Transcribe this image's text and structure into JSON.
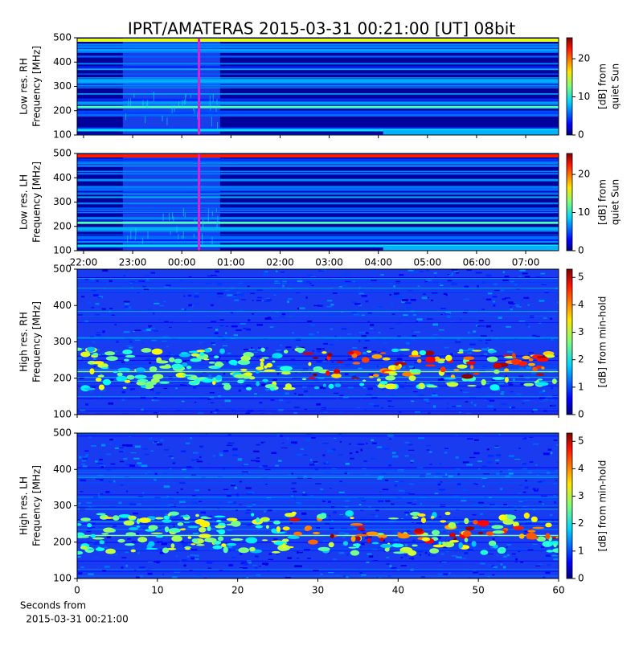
{
  "title": "IPRT/AMATERAS 2015-03-31 00:21:00 [UT]   08bit",
  "chart_data": [
    {
      "type": "heatmap",
      "ylabel": [
        "Low res. RH",
        "Frequency [MHz]"
      ],
      "xlim": [
        -2.13,
        7.67
      ],
      "xticks": [
        {
          "value": -2,
          "label": "22:00"
        },
        {
          "value": -1,
          "label": "23:00"
        },
        {
          "value": 0,
          "label": "00:00"
        },
        {
          "value": 1,
          "label": "01:00"
        },
        {
          "value": 2,
          "label": "02:00"
        },
        {
          "value": 3,
          "label": "03:00"
        },
        {
          "value": 4,
          "label": "04:00"
        },
        {
          "value": 5,
          "label": "05:00"
        },
        {
          "value": 6,
          "label": "06:00"
        },
        {
          "value": 7,
          "label": "07:00"
        }
      ],
      "xticklabels_visible": false,
      "ylim": [
        100,
        500
      ],
      "yticks": [
        100,
        200,
        300,
        400,
        500
      ],
      "marker_x": 0.35,
      "marker_color": "#e020d0",
      "colorbar_label": [
        "[dB] from",
        "quiet Sun"
      ],
      "clim": [
        0,
        25.5
      ],
      "cticks": [
        0,
        10,
        20
      ]
    },
    {
      "type": "heatmap",
      "ylabel": [
        "Low res. LH",
        "Frequency [MHz]"
      ],
      "xlim": [
        -2.13,
        7.67
      ],
      "xticks": [
        {
          "value": -2,
          "label": "22:00"
        },
        {
          "value": -1,
          "label": "23:00"
        },
        {
          "value": 0,
          "label": "00:00"
        },
        {
          "value": 1,
          "label": "01:00"
        },
        {
          "value": 2,
          "label": "02:00"
        },
        {
          "value": 3,
          "label": "03:00"
        },
        {
          "value": 4,
          "label": "04:00"
        },
        {
          "value": 5,
          "label": "05:00"
        },
        {
          "value": 6,
          "label": "06:00"
        },
        {
          "value": 7,
          "label": "07:00"
        }
      ],
      "xticklabels_visible": true,
      "ylim": [
        100,
        500
      ],
      "yticks": [
        100,
        200,
        300,
        400,
        500
      ],
      "marker_x": 0.35,
      "marker_color": "#e020d0",
      "colorbar_label": [
        "[dB] from",
        "quiet Sun"
      ],
      "clim": [
        0,
        25.5
      ],
      "cticks": [
        0,
        10,
        20
      ]
    },
    {
      "type": "heatmap",
      "ylabel": [
        "High res. RH",
        "Frequency [MHz]"
      ],
      "xlim": [
        0,
        60
      ],
      "xticks": [
        0,
        10,
        20,
        30,
        40,
        50,
        60
      ],
      "xticklabels_visible": false,
      "ylim": [
        100,
        500
      ],
      "yticks": [
        100,
        200,
        300,
        400,
        500
      ],
      "colorbar_label": [
        "[dB] from min-hold"
      ],
      "clim": [
        0,
        5.3
      ],
      "cticks": [
        0,
        1,
        2,
        3,
        4,
        5
      ]
    },
    {
      "type": "heatmap",
      "ylabel": [
        "High res. LH",
        "Frequency [MHz]"
      ],
      "xlim": [
        0,
        60
      ],
      "xticks": [
        0,
        10,
        20,
        30,
        40,
        50,
        60
      ],
      "xticklabels_visible": true,
      "xlabel": [
        "Seconds from",
        "2015-03-31 00:21:00"
      ],
      "ylim": [
        100,
        500
      ],
      "yticks": [
        100,
        200,
        300,
        400,
        500
      ],
      "colorbar_label": [
        "[dB] from min-hold"
      ],
      "clim": [
        0,
        5.3
      ],
      "cticks": [
        0,
        1,
        2,
        3,
        4,
        5
      ]
    }
  ]
}
